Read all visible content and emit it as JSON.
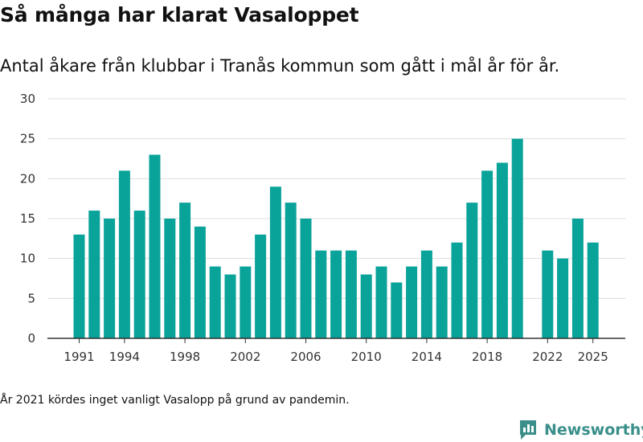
{
  "header": {
    "title": "Så många har klarat Vasaloppet",
    "subtitle": "Antal åkare från klubbar i Tranås kommun som gått i mål år för år."
  },
  "footer": {
    "note": "År 2021 kördes inget vanligt Vasalopp på grund av pandemin.",
    "brand": "Newsworthy"
  },
  "colors": {
    "bar": "#0aa39a",
    "grid": "#dddddd",
    "axis": "#333333",
    "brand": "#3a8f8a"
  },
  "chart_data": {
    "type": "bar",
    "title": "Så många har klarat Vasaloppet",
    "xlabel": "",
    "ylabel": "",
    "ylim": [
      0,
      30
    ],
    "yticks": [
      0,
      5,
      10,
      15,
      20,
      25,
      30
    ],
    "xtick_labels": [
      "1991",
      "1994",
      "1998",
      "2002",
      "2006",
      "2010",
      "2014",
      "2018",
      "2022",
      "2025"
    ],
    "categories": [
      "1991",
      "1992",
      "1993",
      "1994",
      "1995",
      "1996",
      "1997",
      "1998",
      "1999",
      "2000",
      "2001",
      "2002",
      "2003",
      "2004",
      "2005",
      "2006",
      "2007",
      "2008",
      "2009",
      "2010",
      "2011",
      "2012",
      "2013",
      "2014",
      "2015",
      "2016",
      "2017",
      "2018",
      "2019",
      "2020",
      "2021",
      "2022",
      "2023",
      "2024",
      "2025"
    ],
    "values": [
      13,
      16,
      15,
      21,
      16,
      23,
      15,
      17,
      14,
      9,
      8,
      9,
      13,
      19,
      17,
      15,
      11,
      11,
      11,
      8,
      9,
      7,
      9,
      11,
      9,
      12,
      17,
      21,
      22,
      25,
      null,
      11,
      10,
      15,
      12
    ]
  }
}
